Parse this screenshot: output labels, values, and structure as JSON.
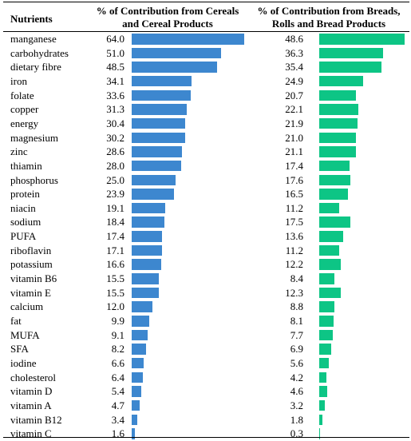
{
  "header": {
    "nutrients": "Nutrients",
    "col1_line1": "% of Contribution from Cereals",
    "col1_line2": "and Cereal Products",
    "col2_line1": "% of Contribution from Breads,",
    "col2_line2": "Rolls and Bread Products"
  },
  "colors": {
    "cereals_bar": "#3d87cf",
    "breads_bar": "#0dc585"
  },
  "chart_data": {
    "type": "table",
    "columns": [
      "Nutrients",
      "% of Contribution from Cereals and Cereal Products",
      "% of Contribution from Breads, Rolls and Bread Products"
    ],
    "xlim": [
      0,
      64
    ],
    "rows": [
      {
        "name": "manganese",
        "v1": "64.0",
        "v2": "48.6"
      },
      {
        "name": "carbohydrates",
        "v1": "51.0",
        "v2": "36.3"
      },
      {
        "name": "dietary fibre",
        "v1": "48.5",
        "v2": "35.4"
      },
      {
        "name": "iron",
        "v1": "34.1",
        "v2": "24.9"
      },
      {
        "name": "folate",
        "v1": "33.6",
        "v2": "20.7"
      },
      {
        "name": "copper",
        "v1": "31.3",
        "v2": "22.1"
      },
      {
        "name": "energy",
        "v1": "30.4",
        "v2": "21.9"
      },
      {
        "name": "magnesium",
        "v1": "30.2",
        "v2": "21.0"
      },
      {
        "name": "zinc",
        "v1": "28.6",
        "v2": "21.1"
      },
      {
        "name": "thiamin",
        "v1": "28.0",
        "v2": "17.4"
      },
      {
        "name": "phosphorus",
        "v1": "25.0",
        "v2": "17.6"
      },
      {
        "name": "protein",
        "v1": "23.9",
        "v2": "16.5"
      },
      {
        "name": "niacin",
        "v1": "19.1",
        "v2": "11.2"
      },
      {
        "name": "sodium",
        "v1": "18.4",
        "v2": "17.5"
      },
      {
        "name": "PUFA",
        "v1": "17.4",
        "v2": "13.6"
      },
      {
        "name": "riboflavin",
        "v1": "17.1",
        "v2": "11.2"
      },
      {
        "name": "potassium",
        "v1": "16.6",
        "v2": "12.2"
      },
      {
        "name": "vitamin B6",
        "v1": "15.5",
        "v2": "8.4"
      },
      {
        "name": "vitamin E",
        "v1": "15.5",
        "v2": "12.3"
      },
      {
        "name": "calcium",
        "v1": "12.0",
        "v2": "8.8"
      },
      {
        "name": "fat",
        "v1": "9.9",
        "v2": "8.1"
      },
      {
        "name": "MUFA",
        "v1": "9.1",
        "v2": "7.7"
      },
      {
        "name": "SFA",
        "v1": "8.2",
        "v2": "6.9"
      },
      {
        "name": "iodine",
        "v1": "6.6",
        "v2": "5.6"
      },
      {
        "name": "cholesterol",
        "v1": "6.4",
        "v2": "4.2"
      },
      {
        "name": "vitamin D",
        "v1": "5.4",
        "v2": "4.6"
      },
      {
        "name": "vitamin A",
        "v1": "4.7",
        "v2": "3.2"
      },
      {
        "name": "vitamin B12",
        "v1": "3.4",
        "v2": "1.8"
      },
      {
        "name": "vitamin C",
        "v1": "1.6",
        "v2": "0.3"
      }
    ]
  }
}
